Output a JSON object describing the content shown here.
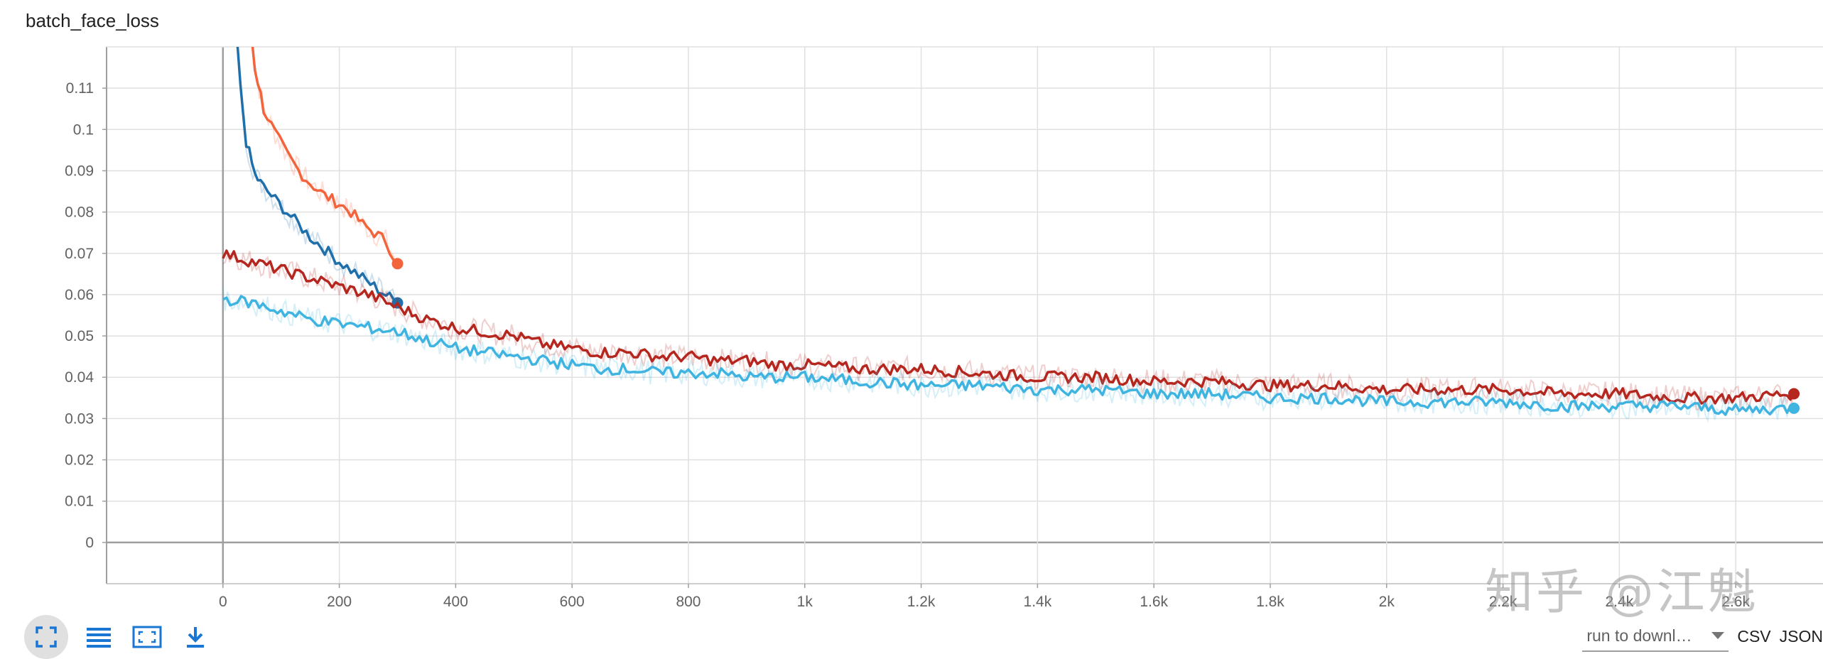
{
  "title": "batch_face_loss",
  "watermark": "知乎 @江魁",
  "toolbar": {
    "fit_icon": "fit-domain-icon",
    "list_icon": "data-list-icon",
    "expand_icon": "expand-chart-icon",
    "download_icon": "download-icon"
  },
  "downloads": {
    "run_select_value": "run to downl…",
    "csv_label": "CSV",
    "json_label": "JSON"
  },
  "chart_data": {
    "type": "line",
    "title": "batch_face_loss",
    "xlabel": "",
    "ylabel": "",
    "xlim": [
      -200,
      2750
    ],
    "ylim": [
      -0.01,
      0.12
    ],
    "x_ticks": [
      0,
      200,
      400,
      600,
      800,
      1000,
      1200,
      1400,
      1600,
      1800,
      2000,
      2200,
      2400,
      2600
    ],
    "x_tick_labels": [
      "0",
      "200",
      "400",
      "600",
      "800",
      "1k",
      "1.2k",
      "1.4k",
      "1.6k",
      "1.8k",
      "2k",
      "2.2k",
      "2.4k",
      "2.6k"
    ],
    "y_ticks": [
      0,
      0.01,
      0.02,
      0.03,
      0.04,
      0.05,
      0.06,
      0.07,
      0.08,
      0.09,
      0.1,
      0.11
    ],
    "y_tick_labels": [
      "0",
      "0.01",
      "0.02",
      "0.03",
      "0.04",
      "0.05",
      "0.06",
      "0.07",
      "0.08",
      "0.09",
      "0.1",
      "0.11"
    ],
    "grid": true,
    "legend": "none",
    "series": [
      {
        "color": "#f4643c",
        "points": [
          [
            40,
            0.135
          ],
          [
            55,
            0.115
          ],
          [
            70,
            0.105
          ],
          [
            90,
            0.099
          ],
          [
            110,
            0.094
          ],
          [
            130,
            0.09
          ],
          [
            150,
            0.087
          ],
          [
            175,
            0.084
          ],
          [
            200,
            0.082
          ],
          [
            220,
            0.08
          ],
          [
            240,
            0.077
          ],
          [
            260,
            0.075
          ],
          [
            280,
            0.073
          ],
          [
            300,
            0.0675
          ]
        ]
      },
      {
        "color": "#1f6fab",
        "points": [
          [
            20,
            0.13
          ],
          [
            30,
            0.11
          ],
          [
            40,
            0.097
          ],
          [
            55,
            0.089
          ],
          [
            70,
            0.086
          ],
          [
            90,
            0.083
          ],
          [
            110,
            0.08
          ],
          [
            130,
            0.077
          ],
          [
            150,
            0.074
          ],
          [
            175,
            0.071
          ],
          [
            200,
            0.068
          ],
          [
            220,
            0.066
          ],
          [
            240,
            0.064
          ],
          [
            260,
            0.062
          ],
          [
            280,
            0.06
          ],
          [
            300,
            0.058
          ]
        ]
      },
      {
        "color": "#b5261e",
        "points": [
          [
            0,
            0.07
          ],
          [
            50,
            0.068
          ],
          [
            100,
            0.066
          ],
          [
            150,
            0.064
          ],
          [
            200,
            0.062
          ],
          [
            250,
            0.06
          ],
          [
            300,
            0.057
          ],
          [
            350,
            0.054
          ],
          [
            400,
            0.052
          ],
          [
            450,
            0.051
          ],
          [
            500,
            0.05
          ],
          [
            550,
            0.048
          ],
          [
            600,
            0.047
          ],
          [
            650,
            0.046
          ],
          [
            700,
            0.046
          ],
          [
            750,
            0.045
          ],
          [
            800,
            0.045
          ],
          [
            850,
            0.044
          ],
          [
            900,
            0.044
          ],
          [
            950,
            0.043
          ],
          [
            1000,
            0.043
          ],
          [
            1100,
            0.042
          ],
          [
            1200,
            0.042
          ],
          [
            1300,
            0.041
          ],
          [
            1400,
            0.04
          ],
          [
            1500,
            0.04
          ],
          [
            1600,
            0.039
          ],
          [
            1700,
            0.039
          ],
          [
            1800,
            0.038
          ],
          [
            1900,
            0.038
          ],
          [
            2000,
            0.037
          ],
          [
            2100,
            0.037
          ],
          [
            2200,
            0.037
          ],
          [
            2300,
            0.036
          ],
          [
            2400,
            0.036
          ],
          [
            2500,
            0.035
          ],
          [
            2600,
            0.035
          ],
          [
            2700,
            0.036
          ]
        ]
      },
      {
        "color": "#3fb4e0",
        "points": [
          [
            0,
            0.059
          ],
          [
            50,
            0.058
          ],
          [
            100,
            0.056
          ],
          [
            150,
            0.054
          ],
          [
            200,
            0.053
          ],
          [
            250,
            0.052
          ],
          [
            300,
            0.051
          ],
          [
            350,
            0.049
          ],
          [
            400,
            0.047
          ],
          [
            450,
            0.046
          ],
          [
            500,
            0.045
          ],
          [
            550,
            0.044
          ],
          [
            600,
            0.043
          ],
          [
            650,
            0.042
          ],
          [
            700,
            0.042
          ],
          [
            750,
            0.041
          ],
          [
            800,
            0.041
          ],
          [
            850,
            0.041
          ],
          [
            900,
            0.04
          ],
          [
            950,
            0.04
          ],
          [
            1000,
            0.04
          ],
          [
            1100,
            0.039
          ],
          [
            1200,
            0.038
          ],
          [
            1300,
            0.038
          ],
          [
            1400,
            0.037
          ],
          [
            1500,
            0.037
          ],
          [
            1600,
            0.036
          ],
          [
            1700,
            0.036
          ],
          [
            1800,
            0.035
          ],
          [
            1900,
            0.035
          ],
          [
            2000,
            0.034
          ],
          [
            2100,
            0.034
          ],
          [
            2200,
            0.034
          ],
          [
            2300,
            0.033
          ],
          [
            2400,
            0.033
          ],
          [
            2500,
            0.033
          ],
          [
            2600,
            0.032
          ],
          [
            2700,
            0.0325
          ]
        ]
      }
    ]
  }
}
